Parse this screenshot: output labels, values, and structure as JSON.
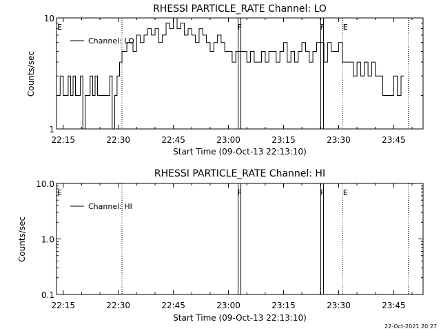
{
  "chart_data": [
    {
      "type": "line",
      "title": "RHESSI PARTICLE_RATE Channel: LO",
      "xlabel": "Start Time (09-Oct-13 22:13:10)",
      "ylabel": "Counts/sec",
      "yscale": "log",
      "ylim": [
        1,
        10
      ],
      "xlim": [
        "22:13:10",
        "23:53:00"
      ],
      "ytick_labels": [
        "1",
        "10"
      ],
      "xtick_labels": [
        "22:15",
        "22:30",
        "22:45",
        "23:00",
        "23:15",
        "23:30",
        "23:45"
      ],
      "legend": "top-left",
      "series": [
        {
          "name": "Channel: LO",
          "x": [
            "22:13:10",
            "22:14:10",
            "22:15:00",
            "22:15:40",
            "22:16:20",
            "22:17:00",
            "22:17:40",
            "22:18:20",
            "22:19:00",
            "22:19:40",
            "22:20:20",
            "22:21:00",
            "22:21:40",
            "22:22:20",
            "22:23:00",
            "22:23:40",
            "22:24:20",
            "22:25:00",
            "22:25:40",
            "22:26:20",
            "22:27:00",
            "22:27:40",
            "22:28:20",
            "22:29:00",
            "22:29:40",
            "22:30:20",
            "22:31:00",
            "22:31:40",
            "22:32:20",
            "22:33:00",
            "22:34:00",
            "22:35:00",
            "22:36:00",
            "22:37:00",
            "22:38:00",
            "22:39:00",
            "22:40:00",
            "22:41:00",
            "22:42:00",
            "22:43:00",
            "22:44:00",
            "22:45:00",
            "22:46:00",
            "22:47:00",
            "22:48:00",
            "22:49:00",
            "22:50:00",
            "22:51:00",
            "22:52:00",
            "22:53:00",
            "22:54:00",
            "22:55:00",
            "22:56:00",
            "22:57:00",
            "22:58:00",
            "22:59:00",
            "23:00:00",
            "23:01:00",
            "23:02:00",
            "23:04:00",
            "23:05:00",
            "23:06:00",
            "23:07:00",
            "23:08:00",
            "23:09:00",
            "23:10:00",
            "23:11:00",
            "23:12:00",
            "23:13:00",
            "23:14:00",
            "23:15:00",
            "23:16:00",
            "23:17:00",
            "23:18:00",
            "23:19:00",
            "23:20:00",
            "23:21:00",
            "23:22:00",
            "23:23:00",
            "23:24:00",
            "23:26:00",
            "23:27:00",
            "23:28:00",
            "23:29:00",
            "23:30:00",
            "23:31:00",
            "23:32:00",
            "23:33:00",
            "23:34:00",
            "23:35:00",
            "23:36:00",
            "23:37:00",
            "23:38:00",
            "23:39:00",
            "23:40:00",
            "23:42:00",
            "23:44:00",
            "23:45:00",
            "23:46:00",
            "23:47:00"
          ],
          "values": [
            2,
            3,
            2,
            2,
            3,
            2,
            3,
            2,
            2,
            3,
            1,
            2,
            2,
            3,
            2,
            3,
            2,
            2,
            2,
            2,
            2,
            3,
            1,
            2,
            3,
            4,
            5,
            5,
            6,
            6,
            5,
            7,
            6,
            7,
            8,
            7,
            8,
            6,
            7,
            9,
            8,
            10,
            8,
            9,
            7,
            8,
            7,
            6,
            8,
            7,
            6,
            5,
            6,
            7,
            6,
            5,
            5,
            4,
            5,
            5,
            4,
            5,
            4,
            4,
            5,
            4,
            5,
            5,
            4,
            5,
            6,
            4,
            5,
            4,
            5,
            6,
            5,
            4,
            5,
            6,
            4,
            6,
            5,
            5,
            6,
            4,
            4,
            4,
            3,
            4,
            3,
            4,
            3,
            4,
            3,
            2,
            2,
            3,
            2,
            3
          ]
        }
      ],
      "vlines": [
        {
          "label": "E",
          "time": "22:13:10"
        },
        {
          "label": "",
          "time": "22:31:00"
        },
        {
          "label": "F",
          "time": "23:03:00"
        },
        {
          "label": "F",
          "time": "23:25:30"
        },
        {
          "label": "E",
          "time": "23:31:00"
        },
        {
          "label": "",
          "time": "23:49:00"
        }
      ]
    },
    {
      "type": "line",
      "title": "RHESSI PARTICLE_RATE Channel: HI",
      "xlabel": "Start Time (09-Oct-13 22:13:10)",
      "ylabel": "Counts/sec",
      "yscale": "log",
      "ylim": [
        0.1,
        10
      ],
      "xlim": [
        "22:13:10",
        "23:53:00"
      ],
      "ytick_labels": [
        "0.1",
        "1.0",
        "10.0"
      ],
      "xtick_labels": [
        "22:15",
        "22:30",
        "22:45",
        "23:00",
        "23:15",
        "23:30",
        "23:45"
      ],
      "legend": "top-left",
      "series": [
        {
          "name": "Channel: HI",
          "x": [],
          "values": []
        }
      ],
      "vlines": [
        {
          "label": "E",
          "time": "22:13:10"
        },
        {
          "label": "",
          "time": "22:31:00"
        },
        {
          "label": "F",
          "time": "23:03:00"
        },
        {
          "label": "F",
          "time": "23:25:30"
        },
        {
          "label": "E",
          "time": "23:31:00"
        },
        {
          "label": "",
          "time": "23:49:00"
        }
      ]
    }
  ],
  "footer": {
    "timestamp": "22-Oct-2021 20:27"
  }
}
